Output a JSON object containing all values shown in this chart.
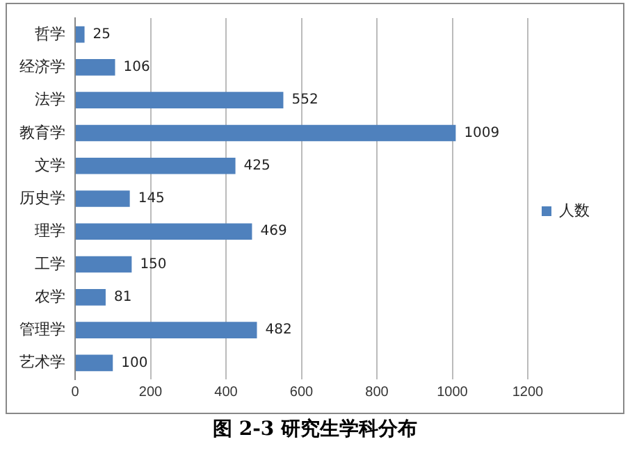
{
  "chart_data": {
    "type": "bar",
    "orientation": "horizontal",
    "title": "图 2-3  研究生学科分布",
    "categories": [
      "哲学",
      "经济学",
      "法学",
      "教育学",
      "文学",
      "历史学",
      "理学",
      "工学",
      "农学",
      "管理学",
      "艺术学"
    ],
    "series": [
      {
        "name": "人数",
        "color": "#4f81bd",
        "values": [
          25,
          106,
          552,
          1009,
          425,
          145,
          469,
          150,
          81,
          482,
          100
        ]
      }
    ],
    "xlim": [
      0,
      1200
    ],
    "xticks": [
      0,
      200,
      400,
      600,
      800,
      1000,
      1200
    ],
    "grid": "x",
    "legend": "right",
    "data_labels": true
  }
}
